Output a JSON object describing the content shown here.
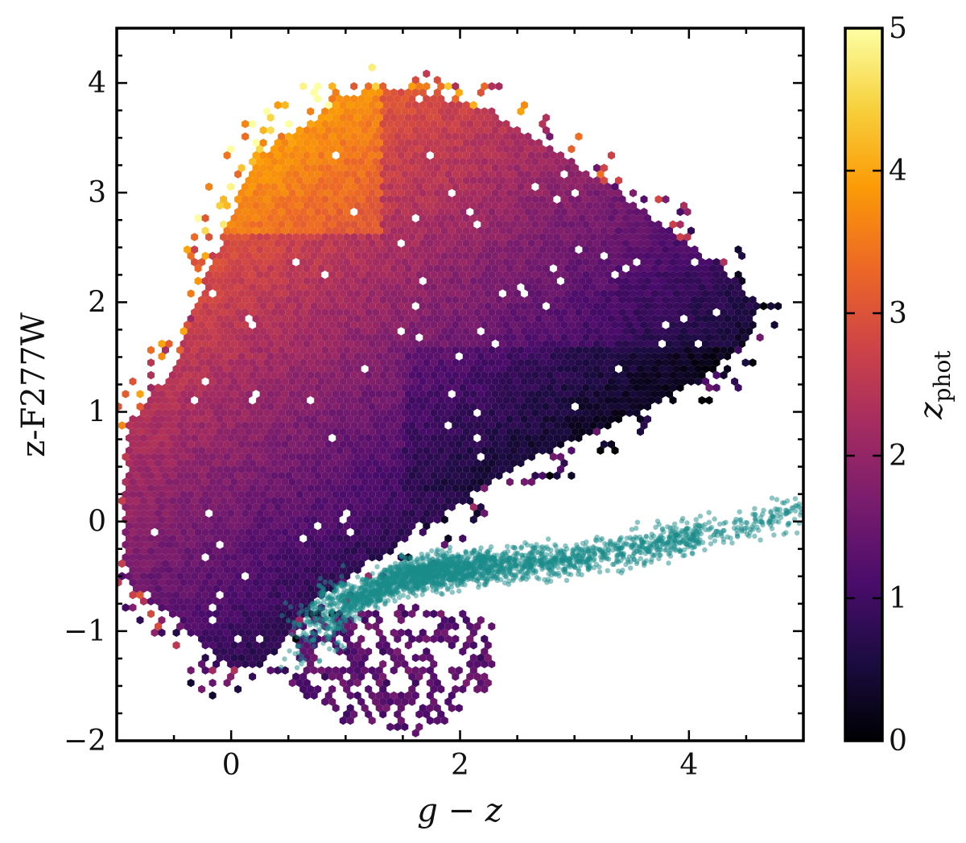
{
  "chart_data": {
    "type": "hexbin-scatter",
    "xlabel": "g − z",
    "ylabel": "z-F277W",
    "xlim": [
      -1,
      5
    ],
    "ylim": [
      -2,
      4.5
    ],
    "x_ticks": [
      "0",
      "2",
      "4"
    ],
    "x_tick_values": [
      0,
      2,
      4
    ],
    "y_ticks": [
      "−2",
      "−1",
      "0",
      "1",
      "2",
      "3",
      "4"
    ],
    "y_tick_values": [
      -2,
      -1,
      0,
      1,
      2,
      3,
      4
    ],
    "grid": false,
    "colorbar": {
      "label": "z",
      "label_subscript": "phot",
      "range": [
        0,
        5
      ],
      "ticks": [
        "0",
        "1",
        "2",
        "3",
        "4",
        "5"
      ],
      "tick_values": [
        0,
        1,
        2,
        3,
        4,
        5
      ],
      "colormap": "inferno",
      "stops": [
        "#000004",
        "#1b0c41",
        "#4a0c6b",
        "#781c6d",
        "#a52c60",
        "#cf4446",
        "#ed6925",
        "#fb9b06",
        "#f7d13d",
        "#fcffa4"
      ]
    },
    "series": [
      {
        "type": "hexbin",
        "color_by": "z_phot",
        "region_outline": [
          [
            -0.95,
            -0.1
          ],
          [
            -0.9,
            0.9
          ],
          [
            -0.5,
            1.4
          ],
          [
            -0.3,
            2.0
          ],
          [
            0.0,
            2.8
          ],
          [
            0.2,
            3.3
          ],
          [
            0.6,
            3.6
          ],
          [
            1.0,
            3.9
          ],
          [
            1.6,
            3.95
          ],
          [
            2.2,
            3.75
          ],
          [
            2.8,
            3.4
          ],
          [
            3.4,
            3.0
          ],
          [
            3.9,
            2.6
          ],
          [
            4.3,
            2.3
          ],
          [
            4.6,
            2.0
          ],
          [
            4.55,
            1.7
          ],
          [
            4.2,
            1.35
          ],
          [
            3.7,
            1.05
          ],
          [
            3.0,
            0.75
          ],
          [
            2.4,
            0.45
          ],
          [
            1.9,
            0.1
          ],
          [
            1.3,
            -0.3
          ],
          [
            0.7,
            -0.75
          ],
          [
            0.3,
            -1.3
          ],
          [
            0.0,
            -1.35
          ],
          [
            -0.5,
            -0.9
          ],
          [
            -0.9,
            -0.55
          ]
        ],
        "lower_tail_outline": [
          [
            0.6,
            -0.9
          ],
          [
            1.6,
            -0.75
          ],
          [
            2.3,
            -0.9
          ],
          [
            2.3,
            -1.6
          ],
          [
            1.6,
            -1.95
          ],
          [
            0.9,
            -1.8
          ],
          [
            0.5,
            -1.5
          ]
        ]
      },
      {
        "type": "scatter",
        "color": "#1a8c8a",
        "opacity": 0.5,
        "trend": [
          [
            0.3,
            -1.3
          ],
          [
            0.8,
            -0.85
          ],
          [
            1.5,
            -0.5
          ],
          [
            2.2,
            -0.4
          ],
          [
            3.0,
            -0.35
          ],
          [
            3.8,
            -0.2
          ],
          [
            4.5,
            -0.05
          ],
          [
            5.0,
            0.1
          ]
        ]
      }
    ]
  }
}
